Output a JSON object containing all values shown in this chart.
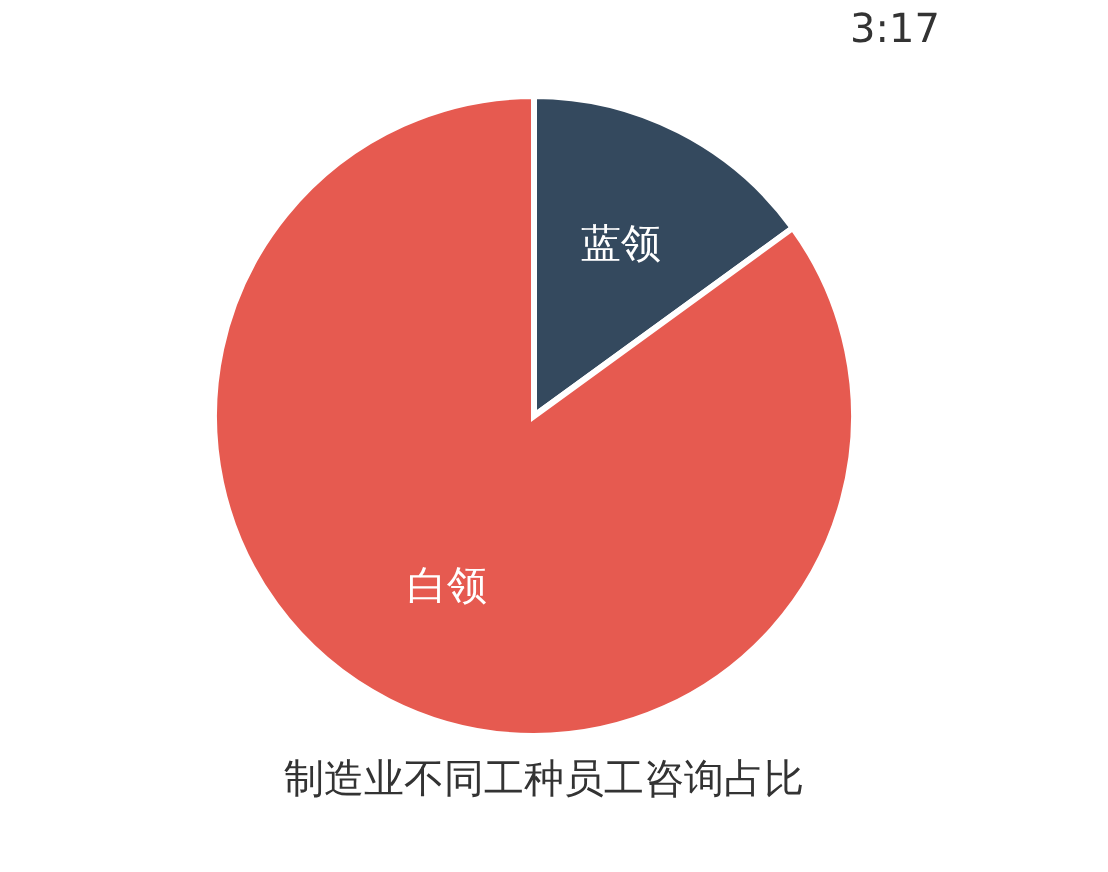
{
  "chart_data": {
    "type": "pie",
    "title": "制造业不同工种员工咨询占比",
    "categories": [
      "蓝领",
      "白领"
    ],
    "values": [
      15,
      85
    ],
    "colors": [
      "#34495e",
      "#e65a50"
    ],
    "annotations": [
      "3:17"
    ],
    "legend": false
  }
}
